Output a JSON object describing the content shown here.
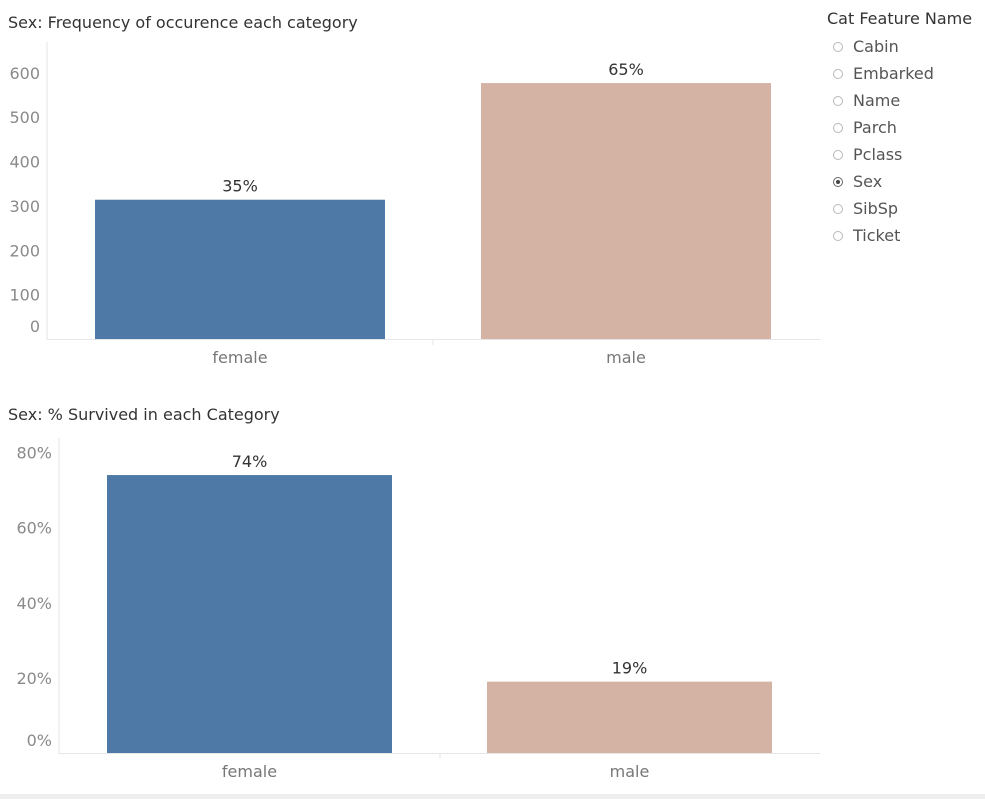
{
  "charts": {
    "frequency": {
      "title": "Sex: Frequency of occurence each category"
    },
    "survival": {
      "title": "Sex: % Survived in each Category"
    }
  },
  "legend": {
    "title": "Cat Feature Name",
    "options": [
      {
        "label": "Cabin",
        "selected": false
      },
      {
        "label": "Embarked",
        "selected": false
      },
      {
        "label": "Name",
        "selected": false
      },
      {
        "label": "Parch",
        "selected": false
      },
      {
        "label": "Pclass",
        "selected": false
      },
      {
        "label": "Sex",
        "selected": true
      },
      {
        "label": "SibSp",
        "selected": false
      },
      {
        "label": "Ticket",
        "selected": false
      }
    ]
  },
  "colors": {
    "female": "#4e79a7",
    "male": "#d4b3a5",
    "axis": "#e6e6e6"
  },
  "chart_data": [
    {
      "type": "bar",
      "title": "Sex: Frequency of occurence each category",
      "categories": [
        "female",
        "male"
      ],
      "values": [
        314,
        577
      ],
      "data_labels": [
        "35%",
        "65%"
      ],
      "ylim": [
        0,
        620
      ],
      "yticks": [
        0,
        100,
        200,
        300,
        400,
        500,
        600
      ],
      "ytick_labels": [
        "0",
        "100",
        "200",
        "300",
        "400",
        "500",
        "600"
      ],
      "grid": false
    },
    {
      "type": "bar",
      "title": "Sex: % Survived in each Category",
      "categories": [
        "female",
        "male"
      ],
      "values": [
        74,
        19
      ],
      "data_labels": [
        "74%",
        "19%"
      ],
      "ylim": [
        0,
        82
      ],
      "yticks": [
        0,
        20,
        40,
        60,
        80
      ],
      "ytick_labels": [
        "0%",
        "20%",
        "40%",
        "60%",
        "80%"
      ],
      "grid": false
    }
  ]
}
